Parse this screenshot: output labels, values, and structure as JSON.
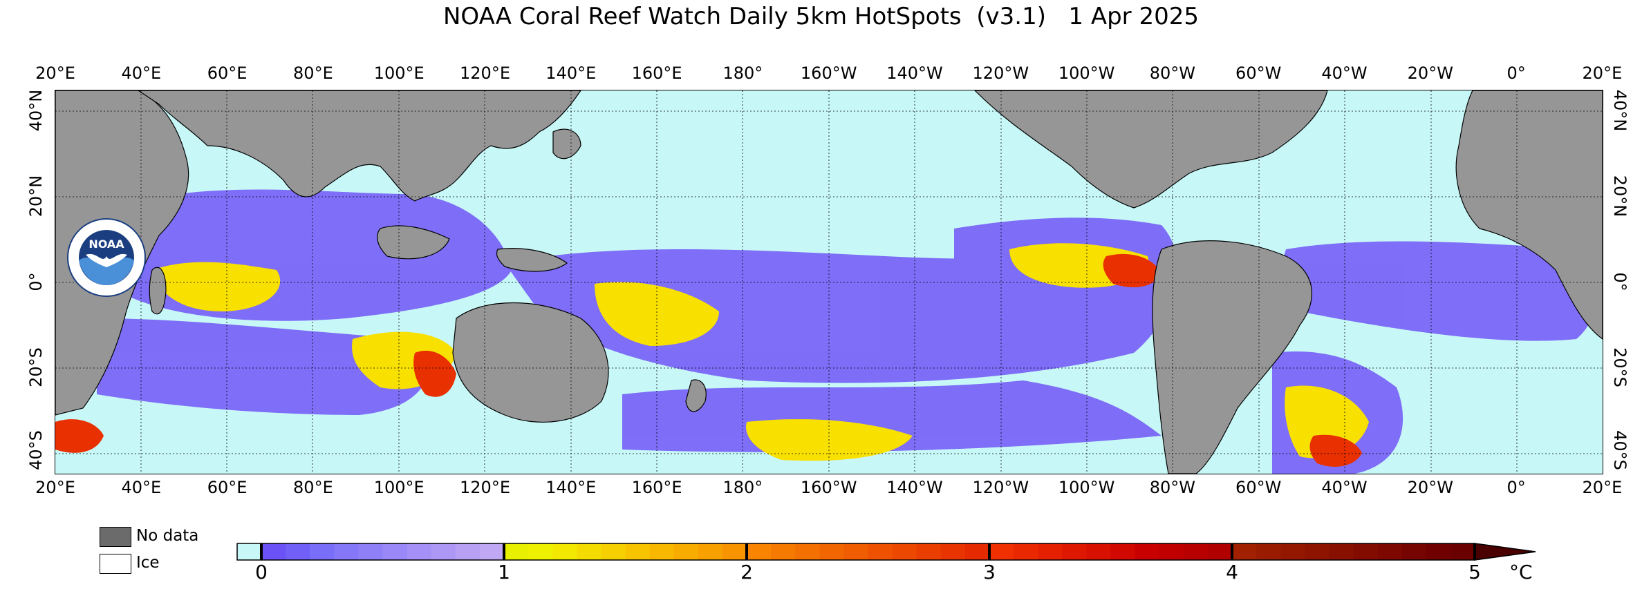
{
  "title": "NOAA Coral Reef Watch Daily 5km HotSpots  (v3.1)   1 Apr 2025",
  "lon_labels": [
    "20°E",
    "40°E",
    "60°E",
    "80°E",
    "100°E",
    "120°E",
    "140°E",
    "160°E",
    "180°",
    "160°W",
    "140°W",
    "120°W",
    "100°W",
    "80°W",
    "60°W",
    "40°W",
    "20°W",
    "0°",
    "20°E"
  ],
  "lat_labels": [
    "40°N",
    "20°N",
    "0°",
    "20°S",
    "40°S"
  ],
  "logo": {
    "text": "NOAA",
    "ring_text": "NATIONAL OCEANIC AND ATMOSPHERIC ADMINISTRATION · U.S. DEPARTMENT OF COMMERCE"
  },
  "legend": {
    "no_data": "No data",
    "ice": "Ice"
  },
  "colorbar": {
    "ticks": [
      "0",
      "1",
      "2",
      "3",
      "4",
      "5"
    ],
    "unit": "°C",
    "colors": {
      "no_stress": "#c7f7f7",
      "level_0_1": [
        "#6a52f7",
        "#7060f7",
        "#786ef8",
        "#8478f8",
        "#9080f8",
        "#9a88f8",
        "#a490f7",
        "#ae98f6",
        "#b8a0f5",
        "#c0a8f4"
      ],
      "level_1_2": [
        "#e8f000",
        "#eef200",
        "#f2e800",
        "#f4dc00",
        "#f6d000",
        "#f8c400",
        "#f8b800",
        "#f8ac00",
        "#f8a000",
        "#f89400"
      ],
      "level_2_3": [
        "#f88400",
        "#f67a00",
        "#f47000",
        "#f26600",
        "#f05c00",
        "#ee5200",
        "#ec4800",
        "#ea3e00",
        "#e83400",
        "#e62a00"
      ],
      "level_3_4": [
        "#f03000",
        "#ea2800",
        "#e42000",
        "#de1800",
        "#d81000",
        "#d00800",
        "#c80000",
        "#c00000",
        "#b80000",
        "#b00000"
      ],
      "level_4_5": [
        "#a02000",
        "#9a1c00",
        "#941800",
        "#8e1400",
        "#881000",
        "#820c00",
        "#7c0800",
        "#760400",
        "#700000",
        "#6a0000"
      ],
      "over": "#4a0000"
    }
  },
  "map_colors": {
    "land": "#969696",
    "ocean_no_stress": "#c7f7f7",
    "watch": "#7a66f8",
    "warning": "#f8e000",
    "alert": "#e83000",
    "severe": "#a00000",
    "grid": "#000000"
  }
}
